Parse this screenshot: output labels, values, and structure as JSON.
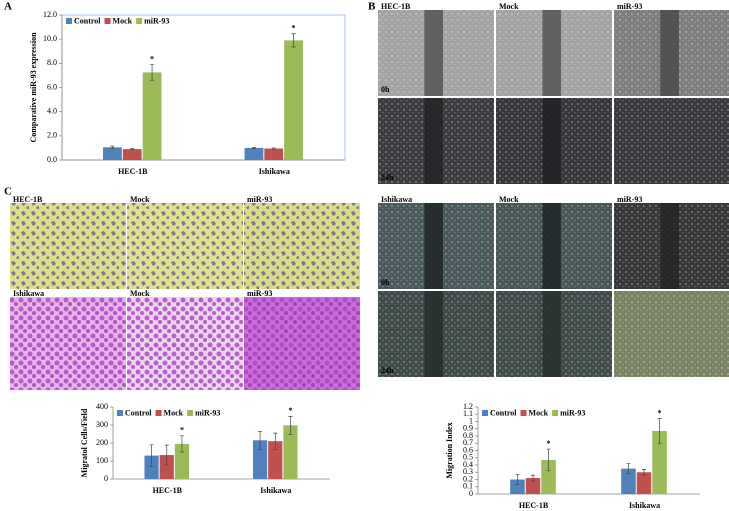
{
  "panel_labels": [
    "A",
    "B",
    "C"
  ],
  "image_panels": [
    {
      "labels": [
        "HEC-1B",
        "Mock",
        "miR-93"
      ],
      "times": [
        "0h",
        "24h"
      ]
    },
    {
      "labels": [
        "Ishikawa",
        "Mock",
        "miR-93"
      ],
      "times": [
        "0h",
        "24h"
      ]
    },
    {
      "labels": [
        "HEC-1B",
        "Mock",
        "miR-93"
      ]
    },
    {
      "labels": [
        "Ishikawa",
        "Mock",
        "miR-93"
      ]
    }
  ],
  "chart_data": [
    {
      "type": "bar",
      "y_label": "Comparative miR-93 expression",
      "star": "*",
      "categories": [
        "HEC-1B",
        "Ishikawa"
      ],
      "series": [
        {
          "name": "Control",
          "color": "#4f81bd",
          "values": [
            1.05,
            1.0
          ],
          "errors": [
            0.1,
            0.05
          ]
        },
        {
          "name": "Mock",
          "color": "#c0504d",
          "values": [
            0.9,
            0.95
          ],
          "errors": [
            0.05,
            0.05
          ]
        },
        {
          "name": "miR-93",
          "color": "#9bbb59",
          "values": [
            7.25,
            9.9
          ],
          "errors": [
            0.65,
            0.55
          ]
        }
      ],
      "ylim": [
        0,
        12
      ],
      "yticks": [
        {
          "value": 0,
          "label": "0.0"
        },
        {
          "value": 2,
          "label": "2.0"
        },
        {
          "value": 4,
          "label": "4.0"
        },
        {
          "value": 6,
          "label": "6.0"
        },
        {
          "value": 8,
          "label": "8.0"
        },
        {
          "value": 10,
          "label": "10.0"
        },
        {
          "value": 12,
          "label": "12.0"
        }
      ]
    },
    {
      "type": "bar",
      "y_label": "Migratol Cells/Field",
      "star": "*",
      "categories": [
        "HEC-1B",
        "Ishikawa"
      ],
      "series": [
        {
          "name": "Control",
          "color": "#4f81bd",
          "values": [
            130,
            215
          ],
          "errors": [
            60,
            50
          ]
        },
        {
          "name": "Mock",
          "color": "#c0504d",
          "values": [
            133,
            210
          ],
          "errors": [
            55,
            45
          ]
        },
        {
          "name": "miR-93",
          "color": "#9bbb59",
          "values": [
            195,
            298
          ],
          "errors": [
            45,
            50
          ]
        }
      ],
      "ylim": [
        0,
        400
      ],
      "yticks": [
        0,
        100,
        200,
        300,
        400
      ]
    },
    {
      "type": "bar",
      "y_label": "Migration Index",
      "star": "*",
      "categories": [
        "HEC-1B",
        "Ishikawa"
      ],
      "series": [
        {
          "name": "Control",
          "color": "#4f81bd",
          "values": [
            0.2,
            0.35
          ],
          "errors": [
            0.07,
            0.07
          ]
        },
        {
          "name": "Mock",
          "color": "#c0504d",
          "values": [
            0.22,
            0.3
          ],
          "errors": [
            0.04,
            0.04
          ]
        },
        {
          "name": "miR-93",
          "color": "#9bbb59",
          "values": [
            0.47,
            0.87
          ],
          "errors": [
            0.15,
            0.17
          ]
        }
      ],
      "ylim": [
        0,
        1.2
      ],
      "yticks": [
        0,
        0.1,
        0.2,
        0.3,
        0.4,
        0.5,
        0.6,
        0.7,
        0.8,
        0.9,
        1,
        1.1,
        1.2
      ]
    }
  ]
}
